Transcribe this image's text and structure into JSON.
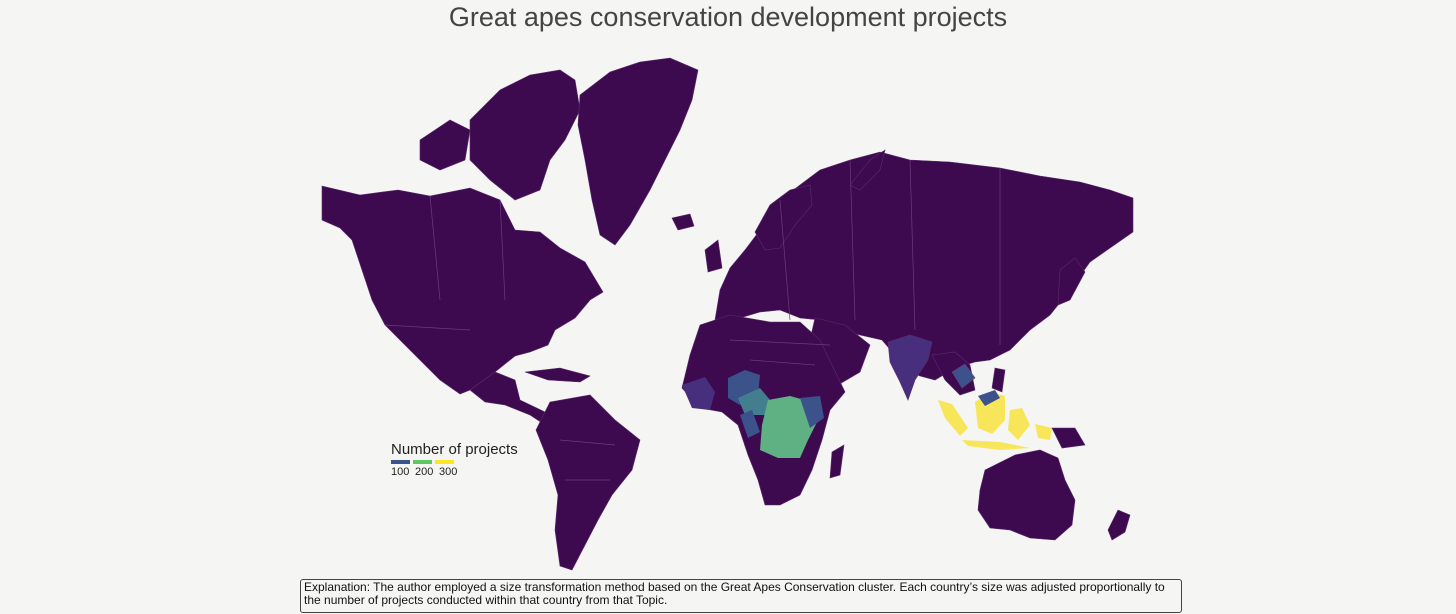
{
  "title": "Great apes conservation development projects",
  "legend": {
    "title": "Number of projects",
    "ticks": [
      "100",
      "200",
      "300"
    ],
    "colors": [
      "#3b528b",
      "#5ec962",
      "#fde725"
    ]
  },
  "explanation": "Explanation: The author employed a size transformation method based on the Great Apes Conservation cluster. Each country’s size was adjusted proportionally to the number of projects conducted within that country from that Topic.",
  "colors": {
    "background": "#f5f5f3",
    "land": "#3e0a4f",
    "low": "#3b528b",
    "mid": "#437e8e",
    "high": "#5fb083",
    "top": "#f7e65a"
  }
}
